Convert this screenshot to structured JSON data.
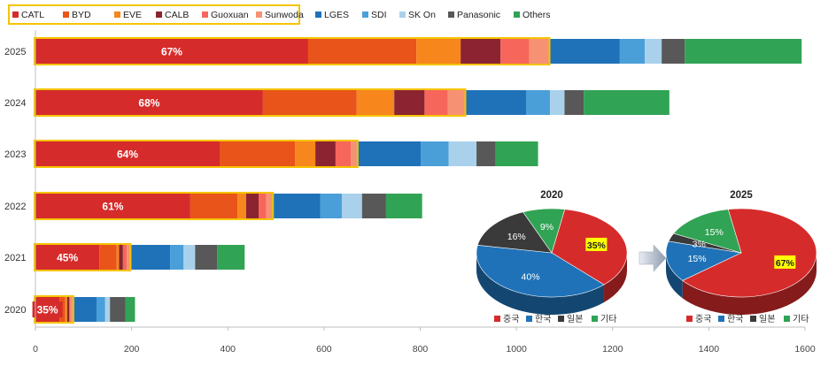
{
  "chart_data": [
    {
      "type": "bar",
      "orientation": "horizontal",
      "stacked": true,
      "categories": [
        "2025",
        "2024",
        "2023",
        "2022",
        "2021",
        "2020"
      ],
      "xlim": [
        0,
        1600
      ],
      "xticks": [
        0,
        200,
        400,
        600,
        800,
        1000,
        1200,
        1400,
        1600
      ],
      "legend_position": "top-left",
      "series": [
        {
          "name": "CATL",
          "color": "#d62b2b",
          "values": [
            567,
            473,
            383,
            322,
            133,
            50
          ]
        },
        {
          "name": "BYD",
          "color": "#e8541a",
          "values": [
            225,
            195,
            157,
            98,
            36,
            12
          ]
        },
        {
          "name": "EVE",
          "color": "#f7861c",
          "values": [
            92,
            78,
            42,
            18,
            5,
            4
          ]
        },
        {
          "name": "CALB",
          "color": "#8b2430",
          "values": [
            83,
            63,
            42,
            26,
            8,
            4
          ]
        },
        {
          "name": "Guoxuan",
          "color": "#f7665a",
          "values": [
            60,
            48,
            32,
            16,
            8,
            3
          ]
        },
        {
          "name": "Sunwoda",
          "color": "#f69273",
          "values": [
            40,
            35,
            12,
            12,
            6,
            4
          ]
        },
        {
          "name": "LGES",
          "color": "#1f72b8",
          "values": [
            148,
            128,
            133,
            100,
            84,
            50
          ]
        },
        {
          "name": "SDI",
          "color": "#4b9fd8",
          "values": [
            52,
            50,
            58,
            45,
            28,
            18
          ]
        },
        {
          "name": "SK On",
          "color": "#a9d1ec",
          "values": [
            35,
            30,
            58,
            42,
            24,
            10
          ]
        },
        {
          "name": "Panasonic",
          "color": "#585858",
          "values": [
            48,
            40,
            40,
            50,
            46,
            32
          ]
        },
        {
          "name": "Others",
          "color": "#31a354",
          "values": [
            243,
            178,
            88,
            75,
            57,
            20
          ]
        }
      ],
      "group_highlight_series": [
        "CATL",
        "BYD",
        "EVE",
        "CALB",
        "Guoxuan",
        "Sunwoda"
      ],
      "highlight_color": "#f5c400",
      "data_labels": [
        {
          "category": "2025",
          "series": "CATL",
          "text": "67%"
        },
        {
          "category": "2024",
          "series": "CATL",
          "text": "68%"
        },
        {
          "category": "2023",
          "series": "CATL",
          "text": "64%"
        },
        {
          "category": "2022",
          "series": "CATL",
          "text": "61%"
        },
        {
          "category": "2021",
          "series": "CATL",
          "text": "45%"
        },
        {
          "category": "2020",
          "series": "CATL",
          "text": "35%"
        }
      ]
    },
    {
      "type": "pie",
      "title": "2020",
      "labels": [
        "중국",
        "한국",
        "일본",
        "기타"
      ],
      "values": [
        35,
        40,
        16,
        9
      ],
      "value_labels": [
        "35%",
        "40%",
        "16%",
        "9%"
      ],
      "colors": [
        "#d62b2b",
        "#1f72b8",
        "#3a3a3a",
        "#31a354"
      ],
      "legend_position": "bottom",
      "highlight_label": "중국"
    },
    {
      "type": "pie",
      "title": "2025",
      "labels": [
        "중국",
        "한국",
        "일본",
        "기타"
      ],
      "values": [
        67,
        15,
        3,
        15
      ],
      "value_labels": [
        "67%",
        "15%",
        "3%",
        "15%"
      ],
      "colors": [
        "#d62b2b",
        "#1f72b8",
        "#3a3a3a",
        "#31a354"
      ],
      "legend_position": "bottom",
      "highlight_label": "중국"
    }
  ]
}
